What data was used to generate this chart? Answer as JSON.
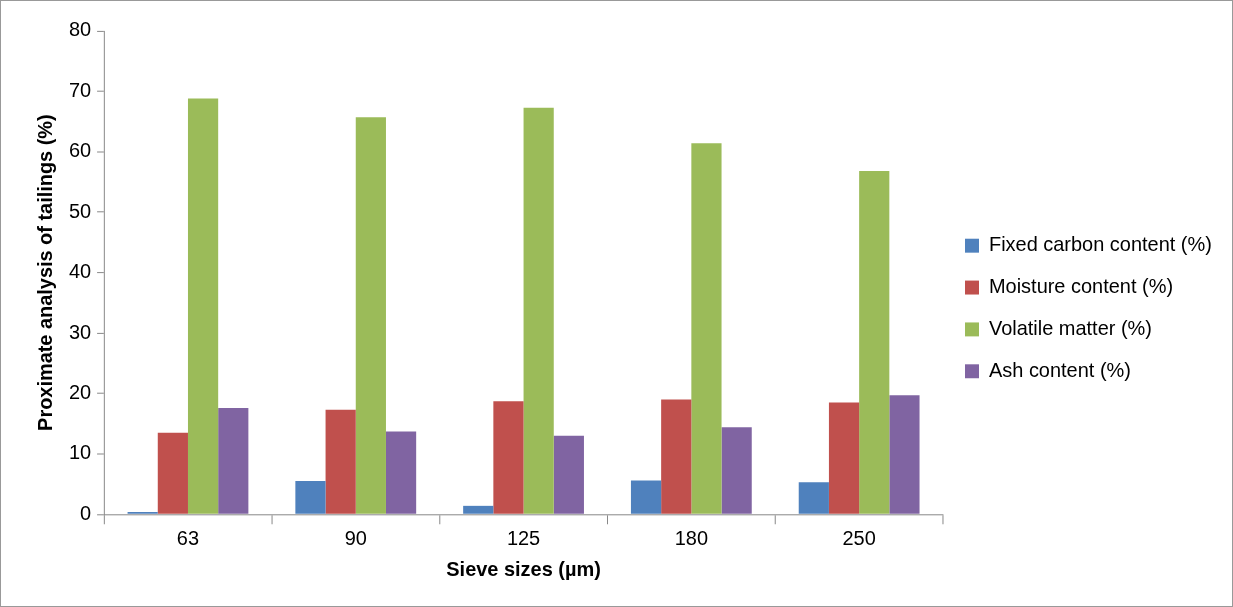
{
  "chart_data": {
    "type": "bar",
    "xlabel": "Sieve sizes (µm)",
    "ylabel": "Proximate analysis of tailings (%)",
    "categories": [
      "63",
      "90",
      "125",
      "180",
      "250"
    ],
    "series": [
      {
        "name": "Fixed carbon content (%)",
        "color": "#4f81bd",
        "values": [
          0.4,
          5.5,
          1.4,
          5.6,
          5.3
        ]
      },
      {
        "name": "Moisture content (%)",
        "color": "#c0504d",
        "values": [
          13.5,
          17.3,
          18.7,
          19.0,
          18.5
        ]
      },
      {
        "name": "Volatile matter (%)",
        "color": "#9bbb59",
        "values": [
          68.8,
          65.7,
          67.3,
          61.4,
          56.8
        ]
      },
      {
        "name": "Ash content (%)",
        "color": "#8064a2",
        "values": [
          17.6,
          13.7,
          13.0,
          14.4,
          19.7
        ]
      }
    ],
    "ylim": [
      0,
      80
    ],
    "yticks": [
      0,
      10,
      20,
      30,
      40,
      50,
      60,
      70,
      80
    ],
    "grid": false,
    "legend": "right"
  }
}
